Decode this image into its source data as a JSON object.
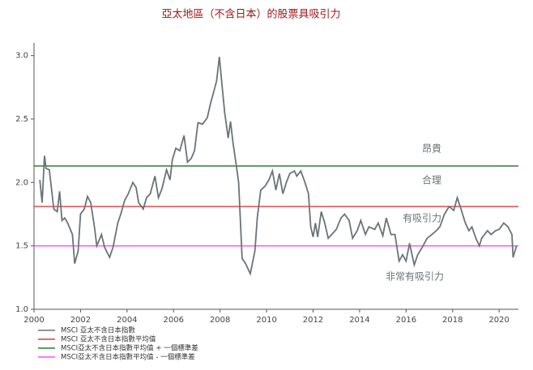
{
  "chart_data": {
    "type": "line",
    "title": "亞太地區（不含日本）的股票具吸引力",
    "xlim": [
      2000,
      2020.83
    ],
    "xticks": [
      2000,
      2002,
      2004,
      2006,
      2008,
      2010,
      2012,
      2014,
      2016,
      2018,
      2020
    ],
    "ylim": [
      1.0,
      3.1
    ],
    "yticks": [
      {
        "value": 1.0,
        "label": "1.0"
      },
      {
        "value": 1.5,
        "label": "1.5"
      },
      {
        "value": 2.0,
        "label": "2.0"
      },
      {
        "value": 2.5,
        "label": "2.5"
      },
      {
        "value": 3.0,
        "label": "3.0"
      }
    ],
    "grid": false,
    "legend": "bottom-left",
    "series": [
      {
        "name": "MSCI 亞太不含日本指數",
        "color": "#6b7378",
        "x": [
          2000.25,
          2000.35,
          2000.45,
          2000.52,
          2000.66,
          2000.85,
          2001.0,
          2001.1,
          2001.2,
          2001.32,
          2001.45,
          2001.65,
          2001.75,
          2001.9,
          2002.0,
          2002.16,
          2002.3,
          2002.44,
          2002.6,
          2002.7,
          2002.9,
          2003.03,
          2003.25,
          2003.4,
          2003.6,
          2003.73,
          2003.9,
          2004.05,
          2004.25,
          2004.39,
          2004.5,
          2004.7,
          2004.84,
          2005.0,
          2005.2,
          2005.35,
          2005.5,
          2005.7,
          2005.85,
          2005.95,
          2006.1,
          2006.27,
          2006.45,
          2006.6,
          2006.76,
          2006.9,
          2007.05,
          2007.25,
          2007.45,
          2007.6,
          2007.75,
          2007.85,
          2007.97,
          2008.1,
          2008.2,
          2008.35,
          2008.45,
          2008.55,
          2008.7,
          2008.8,
          2008.95,
          2009.1,
          2009.3,
          2009.5,
          2009.6,
          2009.75,
          2009.93,
          2010.1,
          2010.25,
          2010.4,
          2010.55,
          2010.7,
          2010.85,
          2011.0,
          2011.2,
          2011.3,
          2011.47,
          2011.65,
          2011.8,
          2011.9,
          2012.0,
          2012.1,
          2012.2,
          2012.35,
          2012.5,
          2012.65,
          2012.8,
          2013.0,
          2013.2,
          2013.35,
          2013.55,
          2013.7,
          2013.9,
          2014.05,
          2014.25,
          2014.4,
          2014.65,
          2014.8,
          2015.0,
          2015.15,
          2015.35,
          2015.52,
          2015.7,
          2015.85,
          2016.0,
          2016.15,
          2016.35,
          2016.5,
          2016.7,
          2016.9,
          2017.05,
          2017.3,
          2017.45,
          2017.65,
          2017.85,
          2018.05,
          2018.2,
          2018.36,
          2018.55,
          2018.7,
          2018.83,
          2019.0,
          2019.15,
          2019.25,
          2019.5,
          2019.65,
          2019.85,
          2020.0,
          2020.2,
          2020.38,
          2020.55,
          2020.6,
          2020.75
        ],
        "values": [
          2.02,
          1.84,
          2.21,
          2.11,
          2.1,
          1.79,
          1.77,
          1.93,
          1.7,
          1.72,
          1.68,
          1.59,
          1.36,
          1.46,
          1.75,
          1.79,
          1.89,
          1.84,
          1.65,
          1.5,
          1.59,
          1.49,
          1.41,
          1.49,
          1.68,
          1.75,
          1.86,
          1.91,
          2.0,
          1.96,
          1.84,
          1.79,
          1.88,
          1.91,
          2.05,
          1.88,
          1.95,
          2.1,
          2.02,
          2.18,
          2.27,
          2.25,
          2.37,
          2.16,
          2.19,
          2.25,
          2.47,
          2.46,
          2.51,
          2.63,
          2.73,
          2.8,
          2.99,
          2.74,
          2.55,
          2.35,
          2.48,
          2.32,
          2.13,
          2.0,
          1.4,
          1.36,
          1.28,
          1.46,
          1.72,
          1.94,
          1.97,
          2.02,
          2.09,
          1.94,
          2.07,
          1.91,
          2.0,
          2.07,
          2.09,
          2.05,
          2.09,
          2.0,
          1.91,
          1.65,
          1.57,
          1.68,
          1.57,
          1.77,
          1.68,
          1.56,
          1.59,
          1.63,
          1.72,
          1.75,
          1.7,
          1.56,
          1.62,
          1.7,
          1.59,
          1.65,
          1.63,
          1.68,
          1.58,
          1.72,
          1.59,
          1.59,
          1.38,
          1.43,
          1.38,
          1.52,
          1.35,
          1.43,
          1.49,
          1.56,
          1.58,
          1.62,
          1.65,
          1.75,
          1.81,
          1.78,
          1.88,
          1.79,
          1.68,
          1.62,
          1.65,
          1.56,
          1.5,
          1.56,
          1.62,
          1.59,
          1.62,
          1.63,
          1.68,
          1.65,
          1.59,
          1.41,
          1.5
        ]
      },
      {
        "name": "MSCI 亞太不含日本指數平均值",
        "color": "#e03a3a",
        "x": [
          2000,
          2020.83
        ],
        "values": [
          1.81,
          1.81
        ]
      },
      {
        "name": "MSCI亞太不含日本指數平均值 + 一個標準差",
        "color": "#2e7d32",
        "x": [
          2000,
          2020.83
        ],
        "values": [
          2.13,
          2.13
        ]
      },
      {
        "name": "MSCI亞太不含日本指數平均值 - 一個標準差",
        "color": "#ff4cff",
        "x": [
          2000,
          2020.83
        ],
        "values": [
          1.5,
          1.5
        ]
      }
    ],
    "annotations": [
      {
        "text": "昂貴"
      },
      {
        "text": "合理"
      },
      {
        "text": "有吸引力"
      },
      {
        "text": "非常有吸引力"
      }
    ]
  }
}
